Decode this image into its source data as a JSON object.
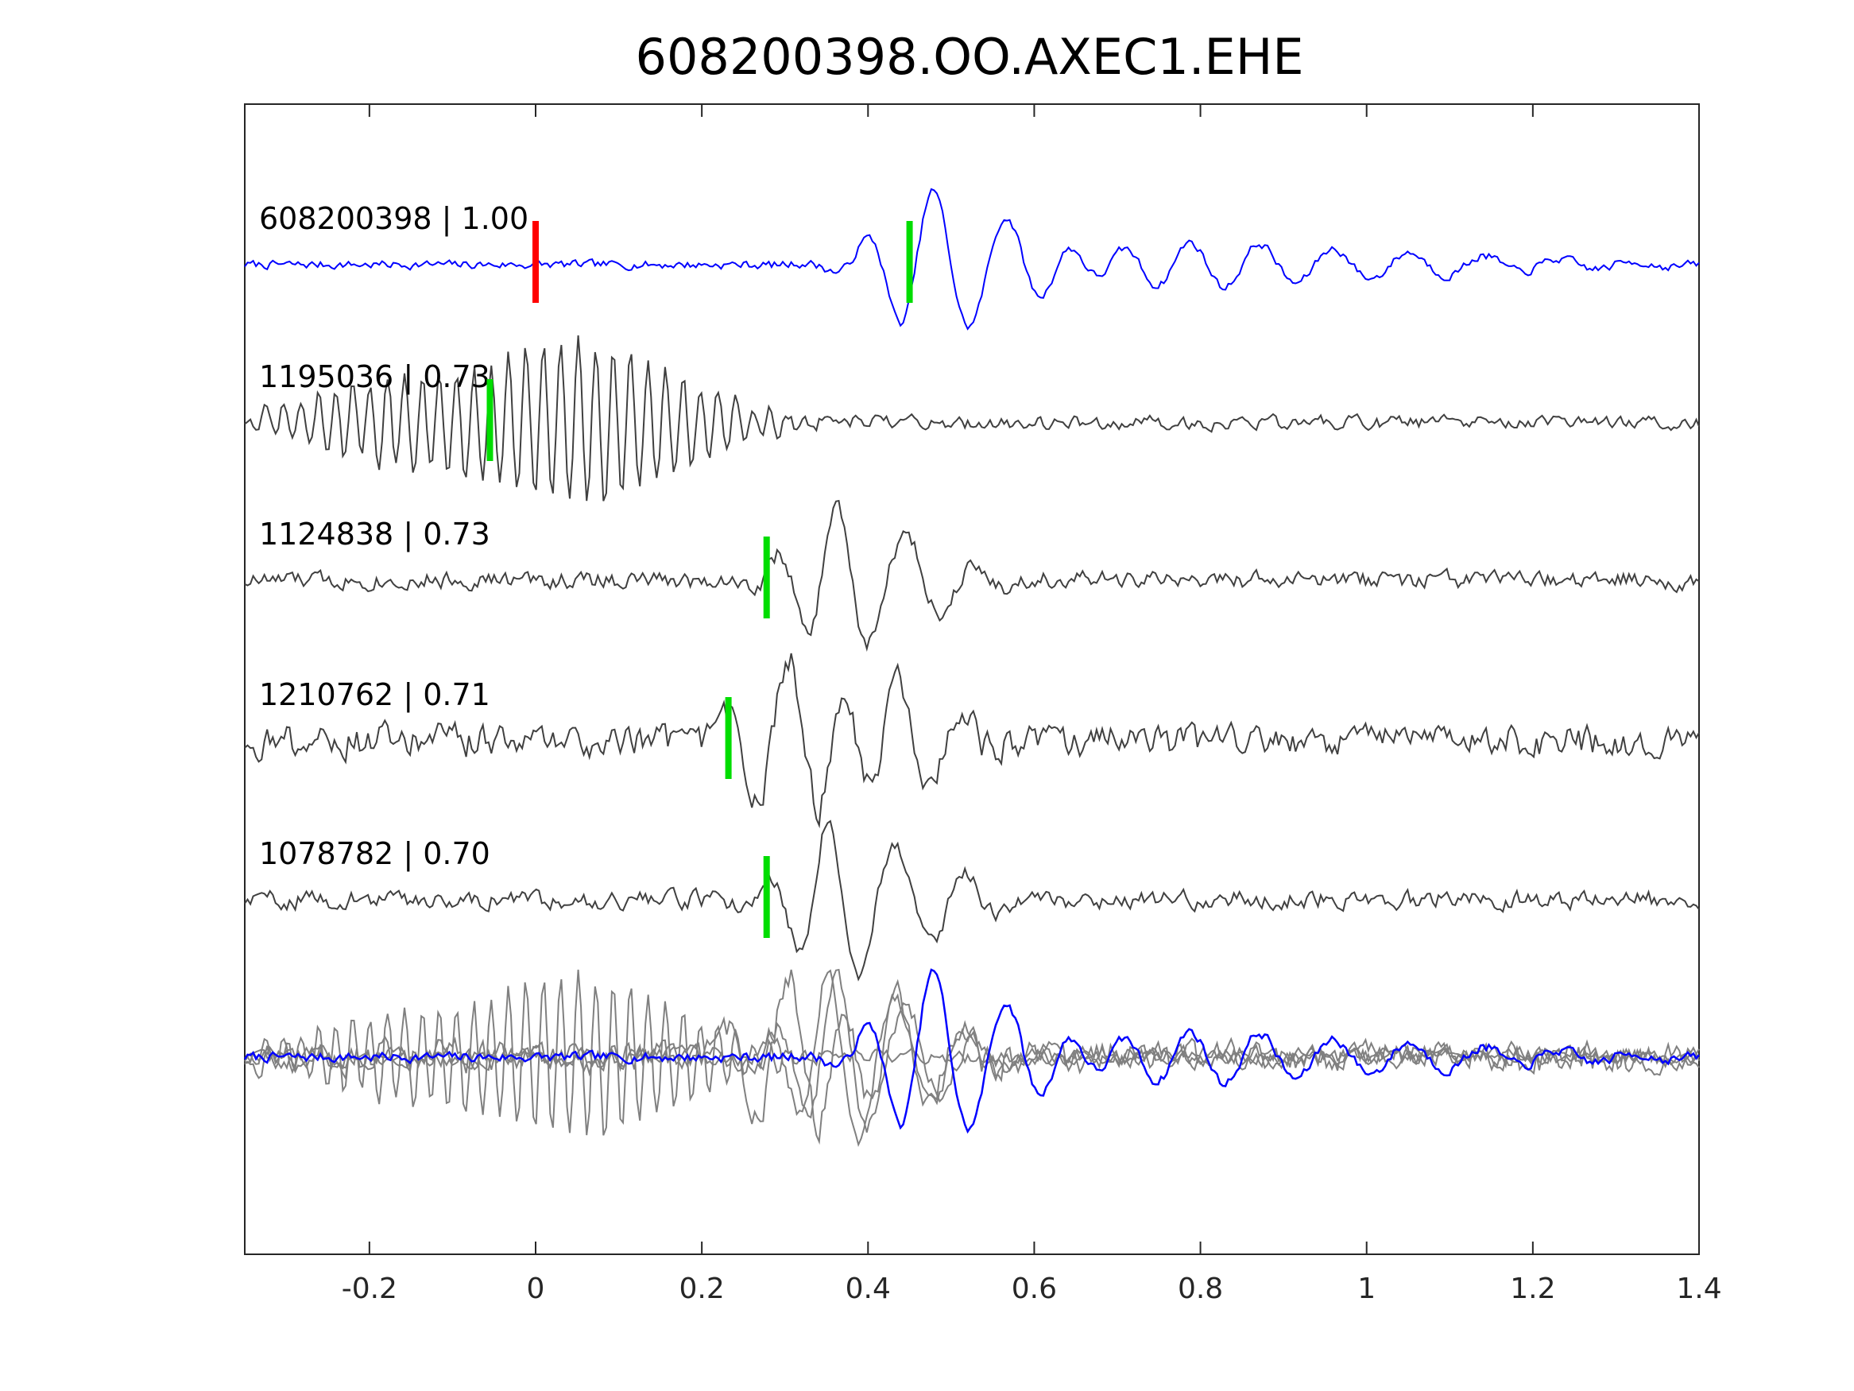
{
  "chart_data": {
    "type": "line",
    "title": "608200398.OO.AXEC1.EHE",
    "xlim": [
      -0.35,
      1.4
    ],
    "xticks": [
      -0.2,
      0,
      0.2,
      0.4,
      0.6,
      0.8,
      1,
      1.2,
      1.4
    ],
    "xtick_labels": [
      "-0.2",
      "0",
      "0.2",
      "0.4",
      "0.6",
      "0.8",
      "1",
      "1.2",
      "1.4"
    ],
    "xlabel": "",
    "ylabel": "",
    "grid": false,
    "colors": {
      "template": "#0000ff",
      "match": "#404040",
      "stack": "#808080",
      "origin_marker": "#ff0000",
      "pick_marker": "#00dd00"
    },
    "traces": [
      {
        "id": "608200398",
        "cc": "1.00",
        "label": "608200398 | 1.00",
        "role": "template",
        "origin_time": 0.0,
        "pick_time": 0.45,
        "noise": 0.12,
        "signal": [
          {
            "t": 0.465,
            "amp": 1.0,
            "period": 0.08,
            "dur": 0.07
          },
          {
            "t": 0.56,
            "amp": 0.8,
            "period": 0.085,
            "dur": 0.1
          },
          {
            "t": 0.7,
            "amp": 0.3,
            "period": 0.08,
            "dur": 0.2
          },
          {
            "t": 0.95,
            "amp": 0.25,
            "period": 0.09,
            "dur": 0.3
          }
        ]
      },
      {
        "id": "1195036",
        "cc": "0.73",
        "label": "1195036 | 0.73",
        "role": "match",
        "pick_time": -0.055,
        "noise": 0.15,
        "signal": [
          {
            "t": 0.05,
            "amp": 1.1,
            "period": 0.021,
            "dur": 0.17
          },
          {
            "t": -0.2,
            "amp": 0.45,
            "period": 0.021,
            "dur": 0.12
          }
        ]
      },
      {
        "id": "1124838",
        "cc": "0.73",
        "label": "1124838 | 0.73",
        "role": "match",
        "pick_time": 0.278,
        "noise": 0.22,
        "signal": [
          {
            "t": 0.36,
            "amp": 1.0,
            "period": 0.07,
            "dur": 0.07
          },
          {
            "t": 0.45,
            "amp": 0.7,
            "period": 0.08,
            "dur": 0.09
          }
        ]
      },
      {
        "id": "1210762",
        "cc": "0.71",
        "label": "1210762 | 0.71",
        "role": "match",
        "pick_time": 0.232,
        "noise": 0.3,
        "signal": [
          {
            "t": 0.31,
            "amp": 1.0,
            "period": 0.08,
            "dur": 0.08
          },
          {
            "t": 0.44,
            "amp": 0.8,
            "period": 0.08,
            "dur": 0.08
          }
        ]
      },
      {
        "id": "1078782",
        "cc": "0.70",
        "label": "1078782 | 0.70",
        "role": "match",
        "pick_time": 0.278,
        "noise": 0.2,
        "signal": [
          {
            "t": 0.36,
            "amp": 1.0,
            "period": 0.07,
            "dur": 0.07
          },
          {
            "t": 0.45,
            "amp": 0.7,
            "period": 0.08,
            "dur": 0.09
          }
        ]
      }
    ],
    "stack_note": "bottom panel overlays all traces"
  }
}
